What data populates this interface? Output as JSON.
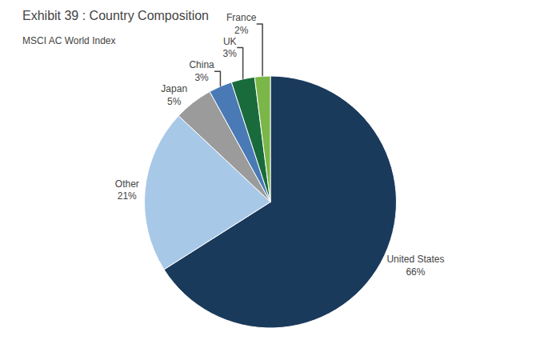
{
  "chart_data": {
    "type": "pie",
    "title": "Exhibit 39 : Country Composition",
    "subtitle": "MSCI AC World Index",
    "categories": [
      "United States",
      "Other",
      "Japan",
      "China",
      "UK",
      "France"
    ],
    "values": [
      66,
      21,
      5,
      3,
      3,
      2
    ],
    "value_labels": [
      "66%",
      "21%",
      "5%",
      "3%",
      "3%",
      "2%"
    ],
    "colors": [
      "#1a3a5c",
      "#a8c8e8",
      "#9b9b9b",
      "#4a7ab5",
      "#1a6b3c",
      "#7ab648"
    ],
    "data_labels": true
  }
}
